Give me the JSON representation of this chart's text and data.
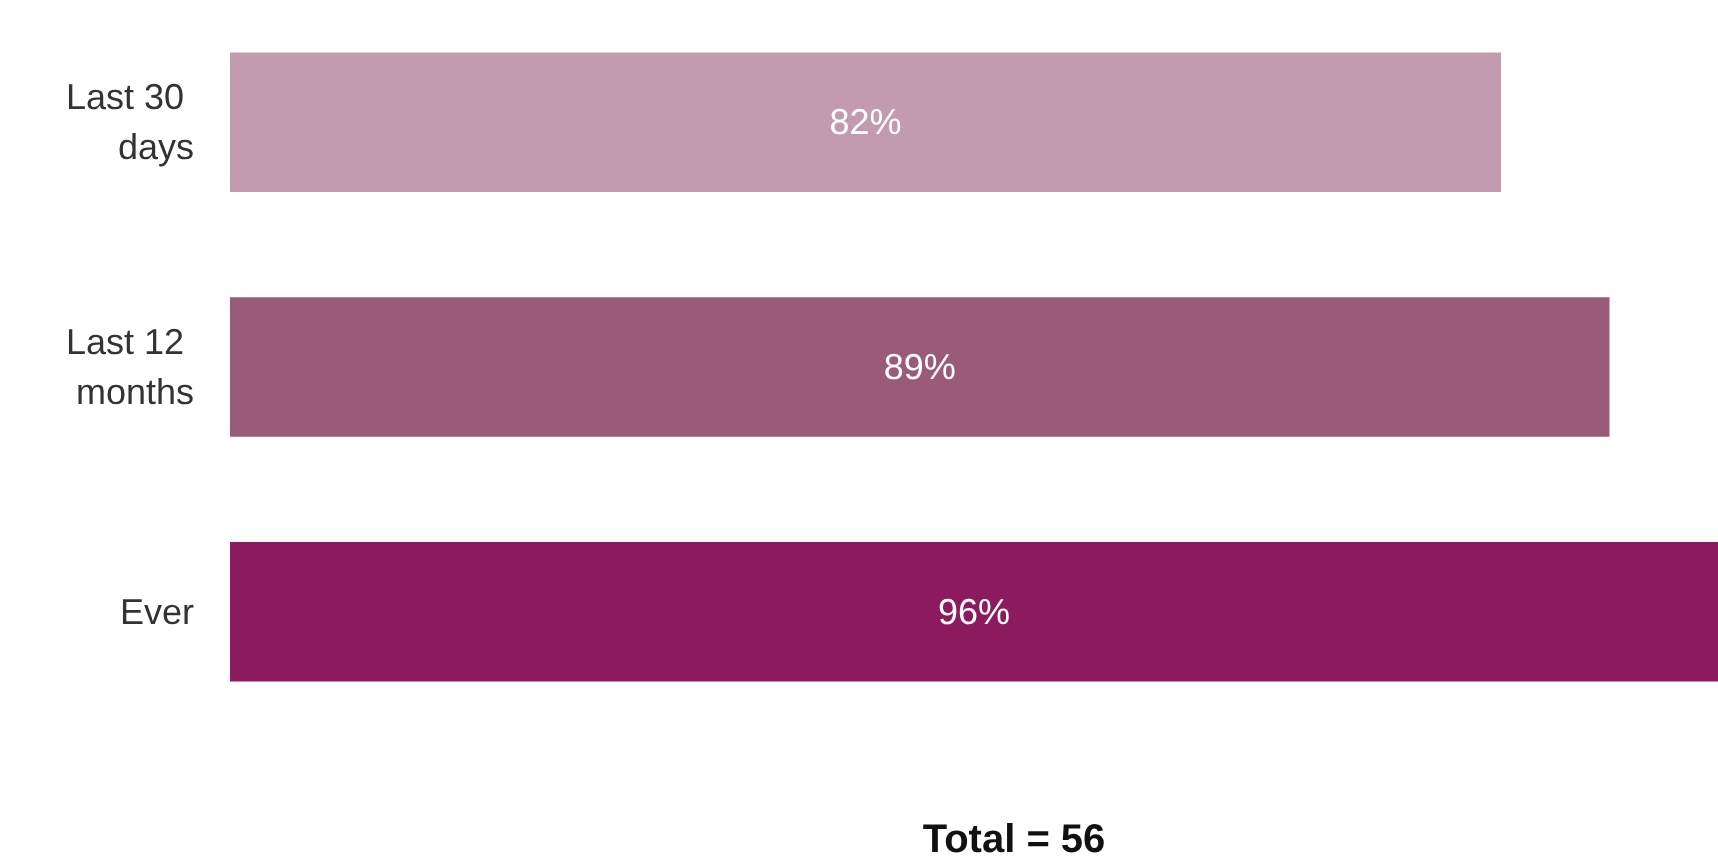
{
  "chart_data": {
    "type": "bar",
    "orientation": "horizontal",
    "categories": [
      "Last 30 days",
      "Last 12 months",
      "Ever"
    ],
    "values": [
      82,
      89,
      96
    ],
    "colors": [
      "#c39bae",
      "#9a5b78",
      "#8b1a5f"
    ],
    "value_labels": [
      "82%",
      "89%",
      "96%"
    ],
    "annotations": [
      "Total = 56"
    ],
    "grid": false
  }
}
